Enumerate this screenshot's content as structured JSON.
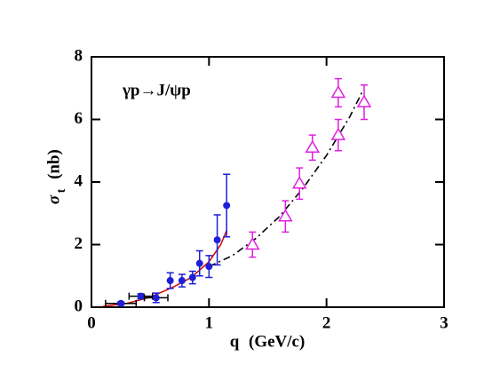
{
  "chart_data": {
    "type": "scatter",
    "annotation": "γp→J/ψp",
    "x_label": "q (GeV/c)",
    "y_label": {
      "symbol": "σ",
      "subscript": "t",
      "unit": "(nb)"
    },
    "xlim": [
      0,
      3
    ],
    "xticks": [
      0,
      1,
      2,
      3
    ],
    "ylim": [
      0,
      8
    ],
    "yticks": [
      0,
      2,
      4,
      6,
      8
    ],
    "series": [
      {
        "color": "#1f1fd6",
        "marker": "circle",
        "x": [
          0.25,
          0.42,
          0.55,
          0.67,
          0.77,
          0.86,
          0.92,
          1.0,
          1.07,
          1.15
        ],
        "values": [
          0.12,
          0.35,
          0.3,
          0.85,
          0.85,
          0.95,
          1.4,
          1.3,
          2.15,
          3.25
        ],
        "yerr": [
          0.05,
          0.08,
          0.15,
          0.25,
          0.2,
          0.2,
          0.4,
          0.35,
          0.8,
          1.0
        ],
        "xerr": [
          0.13,
          0.1,
          0.1,
          null,
          null,
          null,
          null,
          null,
          null,
          null
        ]
      },
      {
        "color": "#e020e0",
        "marker": "triangle",
        "x": [
          1.37,
          1.65,
          1.77,
          1.88,
          2.1,
          2.1,
          2.32
        ],
        "values": [
          2.0,
          2.9,
          3.95,
          5.1,
          6.85,
          5.5,
          6.55
        ],
        "yerr": [
          0.4,
          0.5,
          0.5,
          0.4,
          0.45,
          0.5,
          0.55
        ],
        "xerr": [
          null,
          null,
          null,
          null,
          null,
          null,
          null
        ]
      }
    ],
    "curves": [
      {
        "color": "#d01010",
        "style": "solid",
        "x": [
          0.1,
          0.3,
          0.5,
          0.7,
          0.85,
          1.0,
          1.1,
          1.15
        ],
        "values": [
          0.03,
          0.12,
          0.32,
          0.65,
          0.95,
          1.45,
          2.0,
          2.45
        ]
      },
      {
        "color": "#000000",
        "style": "dashdot",
        "x": [
          1.0,
          1.2,
          1.4,
          1.6,
          1.8,
          2.0,
          2.2,
          2.3
        ],
        "values": [
          1.3,
          1.65,
          2.2,
          2.9,
          3.8,
          4.85,
          6.1,
          6.85
        ]
      }
    ]
  }
}
